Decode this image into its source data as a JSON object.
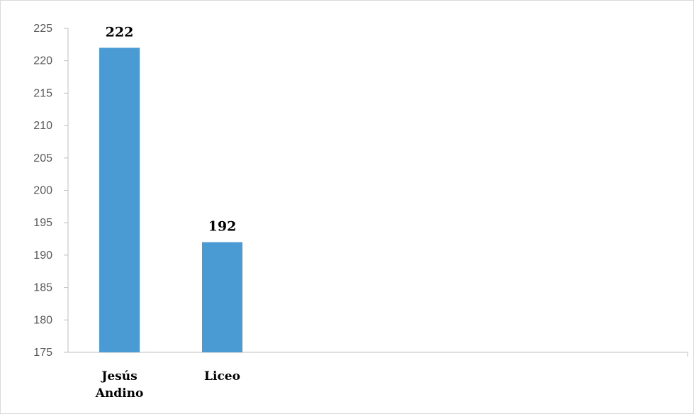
{
  "chart_data": {
    "type": "bar",
    "title": "",
    "xlabel": "",
    "ylabel": "",
    "categories": [
      [
        "Jesús",
        "Andino"
      ],
      [
        "Liceo"
      ]
    ],
    "series": [
      {
        "values": [
          222,
          192
        ],
        "color": "#4a9ad4"
      }
    ],
    "data_labels": [
      "222",
      "192"
    ],
    "ylim": [
      175,
      225
    ],
    "yticks": [
      175,
      180,
      185,
      190,
      195,
      200,
      205,
      210,
      215,
      220,
      225
    ],
    "ytick_labels": [
      "175",
      "180",
      "185",
      "190",
      "195",
      "200",
      "205",
      "210",
      "215",
      "220",
      "225"
    ],
    "grid": false,
    "legend": "none"
  }
}
